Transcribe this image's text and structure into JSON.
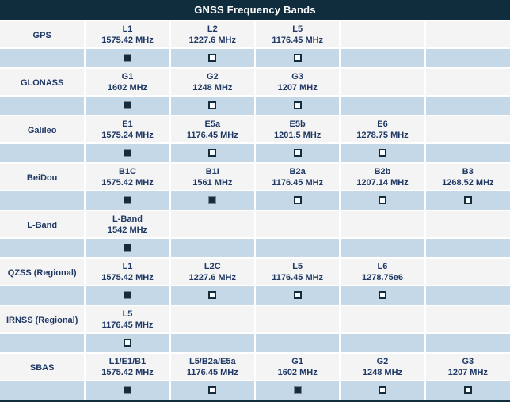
{
  "title": "GNSS Frequency Bands",
  "colors": {
    "header_bg": "#0f2d3d",
    "label_row_bg": "#f4f4f4",
    "check_row_bg": "#c5d8e7",
    "text": "#1f3864",
    "checked_fill": "#132c3e"
  },
  "rows": [
    {
      "name": "GPS",
      "bands": [
        {
          "label": "L1",
          "freq": "1575.42 MHz"
        },
        {
          "label": "L2",
          "freq": "1227.6 MHz"
        },
        {
          "label": "L5",
          "freq": "1176.45 MHz"
        },
        null,
        null
      ],
      "checks": [
        true,
        false,
        false,
        null,
        null
      ]
    },
    {
      "name": "GLONASS",
      "bands": [
        {
          "label": "G1",
          "freq": "1602 MHz"
        },
        {
          "label": "G2",
          "freq": "1248 MHz"
        },
        {
          "label": "G3",
          "freq": "1207 MHz"
        },
        null,
        null
      ],
      "checks": [
        true,
        false,
        false,
        null,
        null
      ]
    },
    {
      "name": "Galileo",
      "bands": [
        {
          "label": "E1",
          "freq": "1575.24 MHz"
        },
        {
          "label": "E5a",
          "freq": "1176.45 MHz"
        },
        {
          "label": "E5b",
          "freq": "1201.5 MHz"
        },
        {
          "label": "E6",
          "freq": "1278.75 MHz"
        },
        null
      ],
      "checks": [
        true,
        false,
        false,
        false,
        null
      ]
    },
    {
      "name": "BeiDou",
      "bands": [
        {
          "label": "B1C",
          "freq": "1575.42 MHz"
        },
        {
          "label": "B1I",
          "freq": "1561 MHz"
        },
        {
          "label": "B2a",
          "freq": "1176.45 MHz"
        },
        {
          "label": "B2b",
          "freq": "1207.14 MHz"
        },
        {
          "label": "B3",
          "freq": "1268.52 MHz"
        }
      ],
      "checks": [
        true,
        true,
        false,
        false,
        false
      ]
    },
    {
      "name": "L-Band",
      "bands": [
        {
          "label": "L-Band",
          "freq": "1542 MHz"
        },
        null,
        null,
        null,
        null
      ],
      "checks": [
        true,
        null,
        null,
        null,
        null
      ]
    },
    {
      "name": "QZSS (Regional)",
      "bands": [
        {
          "label": "L1",
          "freq": "1575.42 MHz"
        },
        {
          "label": "L2C",
          "freq": "1227.6 MHz"
        },
        {
          "label": "L5",
          "freq": "1176.45 MHz"
        },
        {
          "label": "L6",
          "freq": "1278.75e6"
        },
        null
      ],
      "checks": [
        true,
        false,
        false,
        false,
        null
      ]
    },
    {
      "name": "IRNSS (Regional)",
      "bands": [
        {
          "label": "L5",
          "freq": "1176.45 MHz"
        },
        null,
        null,
        null,
        null
      ],
      "checks": [
        false,
        null,
        null,
        null,
        null
      ]
    },
    {
      "name": "SBAS",
      "bands": [
        {
          "label": "L1/E1/B1",
          "freq": "1575.42 MHz"
        },
        {
          "label": "L5/B2a/E5a",
          "freq": "1176.45 MHz"
        },
        {
          "label": "G1",
          "freq": "1602 MHz"
        },
        {
          "label": "G2",
          "freq": "1248 MHz"
        },
        {
          "label": "G3",
          "freq": "1207 MHz"
        }
      ],
      "checks": [
        true,
        false,
        true,
        false,
        false
      ]
    }
  ]
}
